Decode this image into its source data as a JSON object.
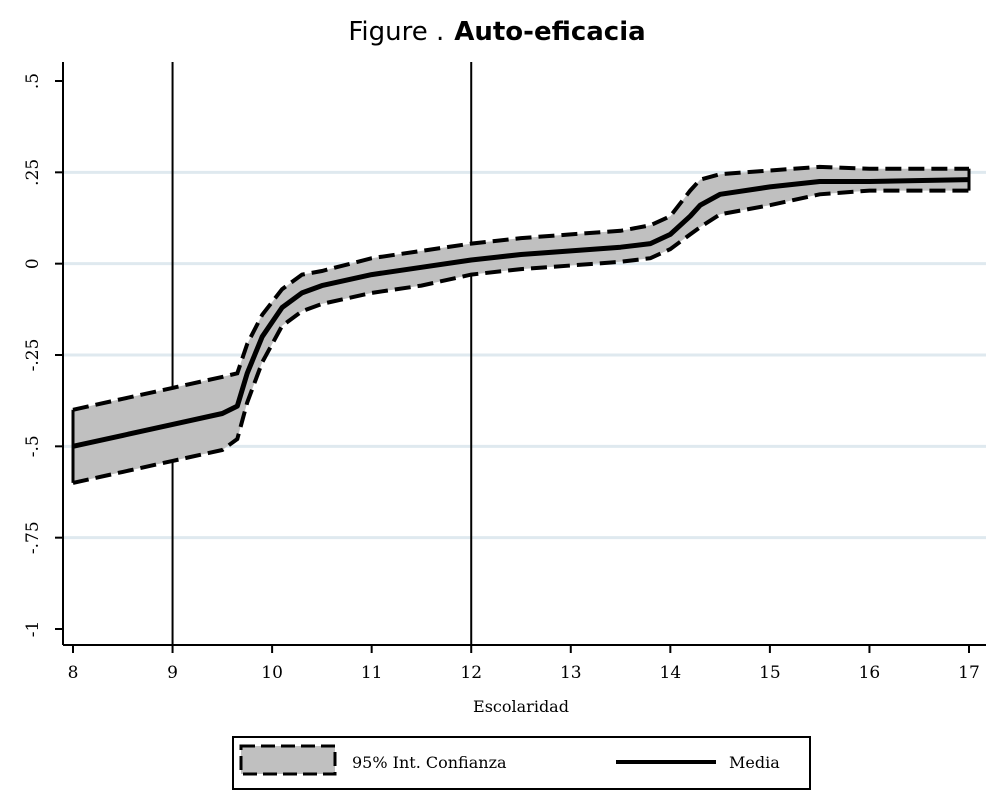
{
  "chart_data": {
    "type": "line",
    "title_prefix": "Figure .",
    "title": "Auto-eficacia",
    "xlabel": "Escolaridad",
    "ylabel": "",
    "xlim": [
      8,
      17
    ],
    "ylim": [
      -1,
      0.5
    ],
    "x_ticks": [
      8,
      9,
      10,
      11,
      12,
      13,
      14,
      15,
      16,
      17
    ],
    "x_tick_labels": [
      "8",
      "9",
      "10",
      "11",
      "12",
      "13",
      "14",
      "15",
      "16",
      "17"
    ],
    "y_ticks": [
      0.5,
      0.25,
      0,
      -0.25,
      -0.5,
      -0.75,
      -1
    ],
    "y_tick_labels": [
      ".5",
      ".25",
      "0",
      "-.25",
      "-.5",
      "-.75",
      "-1"
    ],
    "grid": "horizontal",
    "reference_lines_x": [
      9,
      12
    ],
    "series": [
      {
        "name": "Media",
        "style": "solid",
        "x": [
          8,
          8.5,
          9,
          9.5,
          9.65,
          9.75,
          9.9,
          10.1,
          10.3,
          10.5,
          11,
          11.5,
          12,
          12.5,
          13,
          13.5,
          13.8,
          14,
          14.2,
          14.3,
          14.5,
          15,
          15.5,
          16,
          17
        ],
        "y": [
          -0.5,
          -0.47,
          -0.44,
          -0.41,
          -0.39,
          -0.3,
          -0.2,
          -0.12,
          -0.08,
          -0.06,
          -0.03,
          -0.01,
          0.01,
          0.025,
          0.035,
          0.045,
          0.055,
          0.08,
          0.13,
          0.16,
          0.19,
          0.21,
          0.225,
          0.225,
          0.23
        ]
      },
      {
        "name": "95% Int. Confianza",
        "style": "band",
        "x": [
          8,
          8.5,
          9,
          9.5,
          9.65,
          9.75,
          9.9,
          10.1,
          10.3,
          10.5,
          11,
          11.5,
          12,
          12.5,
          13,
          13.5,
          13.8,
          14,
          14.2,
          14.3,
          14.5,
          15,
          15.5,
          16,
          17
        ],
        "upper": [
          -0.4,
          -0.37,
          -0.34,
          -0.31,
          -0.3,
          -0.22,
          -0.14,
          -0.07,
          -0.03,
          -0.02,
          0.015,
          0.035,
          0.055,
          0.07,
          0.08,
          0.09,
          0.105,
          0.13,
          0.2,
          0.23,
          0.245,
          0.255,
          0.265,
          0.26,
          0.26
        ],
        "lower": [
          -0.6,
          -0.57,
          -0.54,
          -0.51,
          -0.48,
          -0.38,
          -0.27,
          -0.17,
          -0.13,
          -0.11,
          -0.08,
          -0.06,
          -0.03,
          -0.015,
          -0.005,
          0.005,
          0.015,
          0.04,
          0.08,
          0.1,
          0.135,
          0.16,
          0.19,
          0.2,
          0.2
        ]
      }
    ],
    "legend": {
      "placement": "bottom-center",
      "entries": [
        "95% Int. Confianza",
        "Media"
      ]
    }
  }
}
